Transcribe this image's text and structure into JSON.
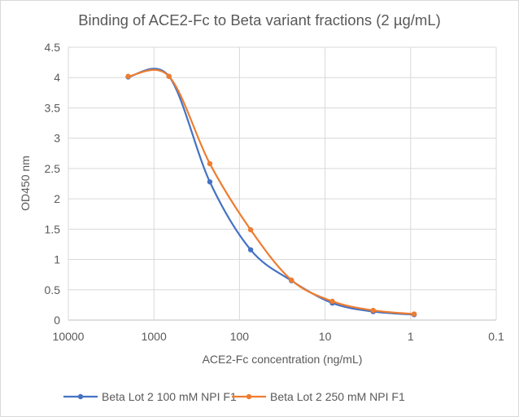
{
  "chart_data": {
    "type": "line",
    "title": "Binding of ACE2-Fc to Beta variant fractions (2 µg/mL)",
    "xlabel": "ACE2-Fc concentration (ng/mL)",
    "ylabel": "OD450 nm",
    "x_scale": "log",
    "x_reversed": true,
    "xlim": [
      10000,
      0.1
    ],
    "ylim": [
      0,
      4.5
    ],
    "x_ticks": [
      "10000",
      "1000",
      "100",
      "10",
      "1",
      "0.1"
    ],
    "y_ticks": [
      "0",
      "0.5",
      "1",
      "1.5",
      "2",
      "2.5",
      "3",
      "3.5",
      "4",
      "4.5"
    ],
    "grid": true,
    "legend_position": "bottom",
    "smoothed": true,
    "x": [
      2000,
      666.7,
      222.2,
      74.1,
      24.7,
      8.23,
      2.74,
      0.91
    ],
    "series": [
      {
        "name": "Beta Lot 2 100 mM NPI F1",
        "color": "#4472c4",
        "values": [
          4.01,
          4.02,
          2.28,
          1.16,
          0.65,
          0.28,
          0.14,
          0.09
        ]
      },
      {
        "name": "Beta Lot 2 250 mM NPI F1",
        "color": "#ed7d31",
        "values": [
          4.02,
          4.02,
          2.58,
          1.49,
          0.66,
          0.31,
          0.16,
          0.1
        ]
      }
    ]
  }
}
